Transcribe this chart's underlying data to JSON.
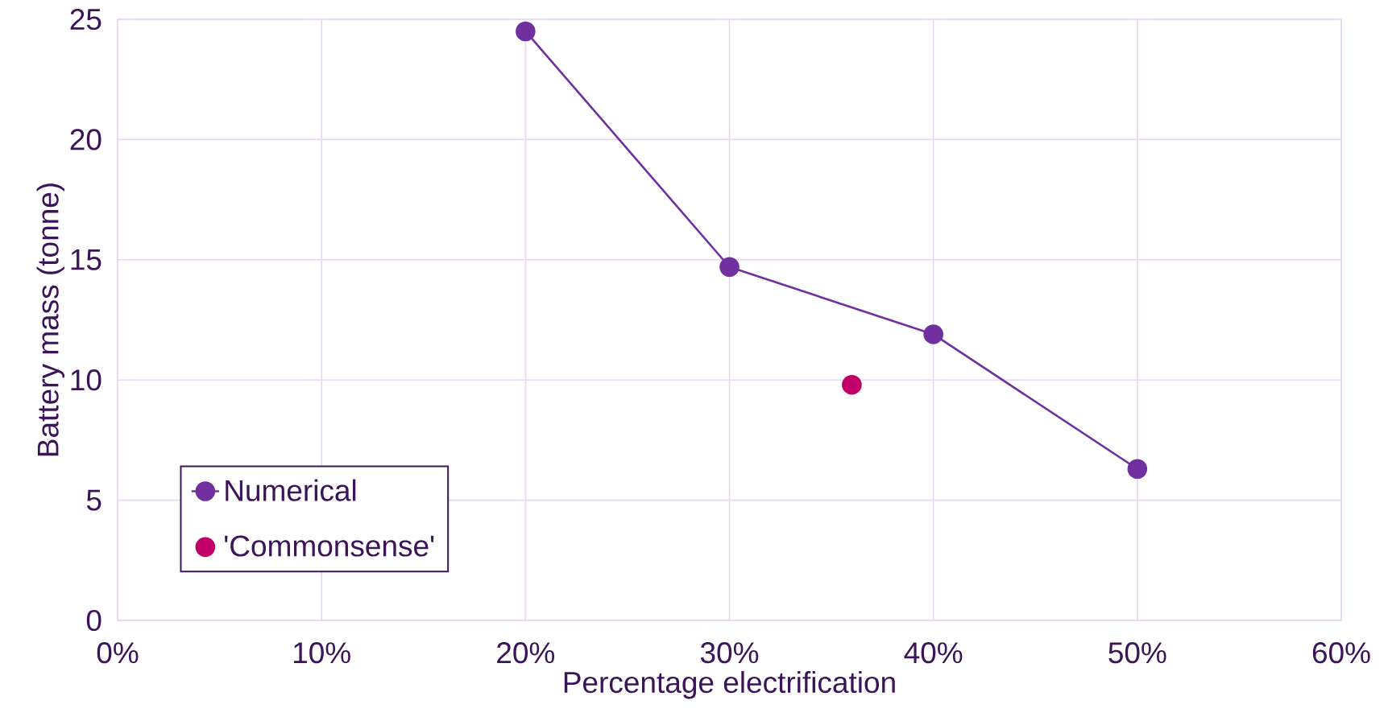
{
  "chart_data": {
    "type": "line",
    "xlabel": "Percentage electrification",
    "ylabel": "Battery mass (tonne)",
    "xlim": [
      0,
      60
    ],
    "ylim": [
      0,
      25
    ],
    "xticks": [
      {
        "value": 0,
        "label": "0%"
      },
      {
        "value": 10,
        "label": "10%"
      },
      {
        "value": 20,
        "label": "20%"
      },
      {
        "value": 30,
        "label": "30%"
      },
      {
        "value": 40,
        "label": "40%"
      },
      {
        "value": 50,
        "label": "50%"
      },
      {
        "value": 60,
        "label": "60%"
      }
    ],
    "yticks": [
      0,
      5,
      10,
      15,
      20,
      25
    ],
    "grid": true,
    "legend": "bottom left",
    "marker": "circle",
    "line_style": "solid",
    "series": [
      {
        "name": "Numerical",
        "color": "#7030a0",
        "x": [
          20,
          30,
          40,
          50
        ],
        "values": [
          24.5,
          14.7,
          11.9,
          6.3
        ]
      },
      {
        "name": "'Commonsense'",
        "color": "#c00068",
        "type": "scatter",
        "x": [
          36
        ],
        "values": [
          9.8
        ]
      }
    ]
  }
}
